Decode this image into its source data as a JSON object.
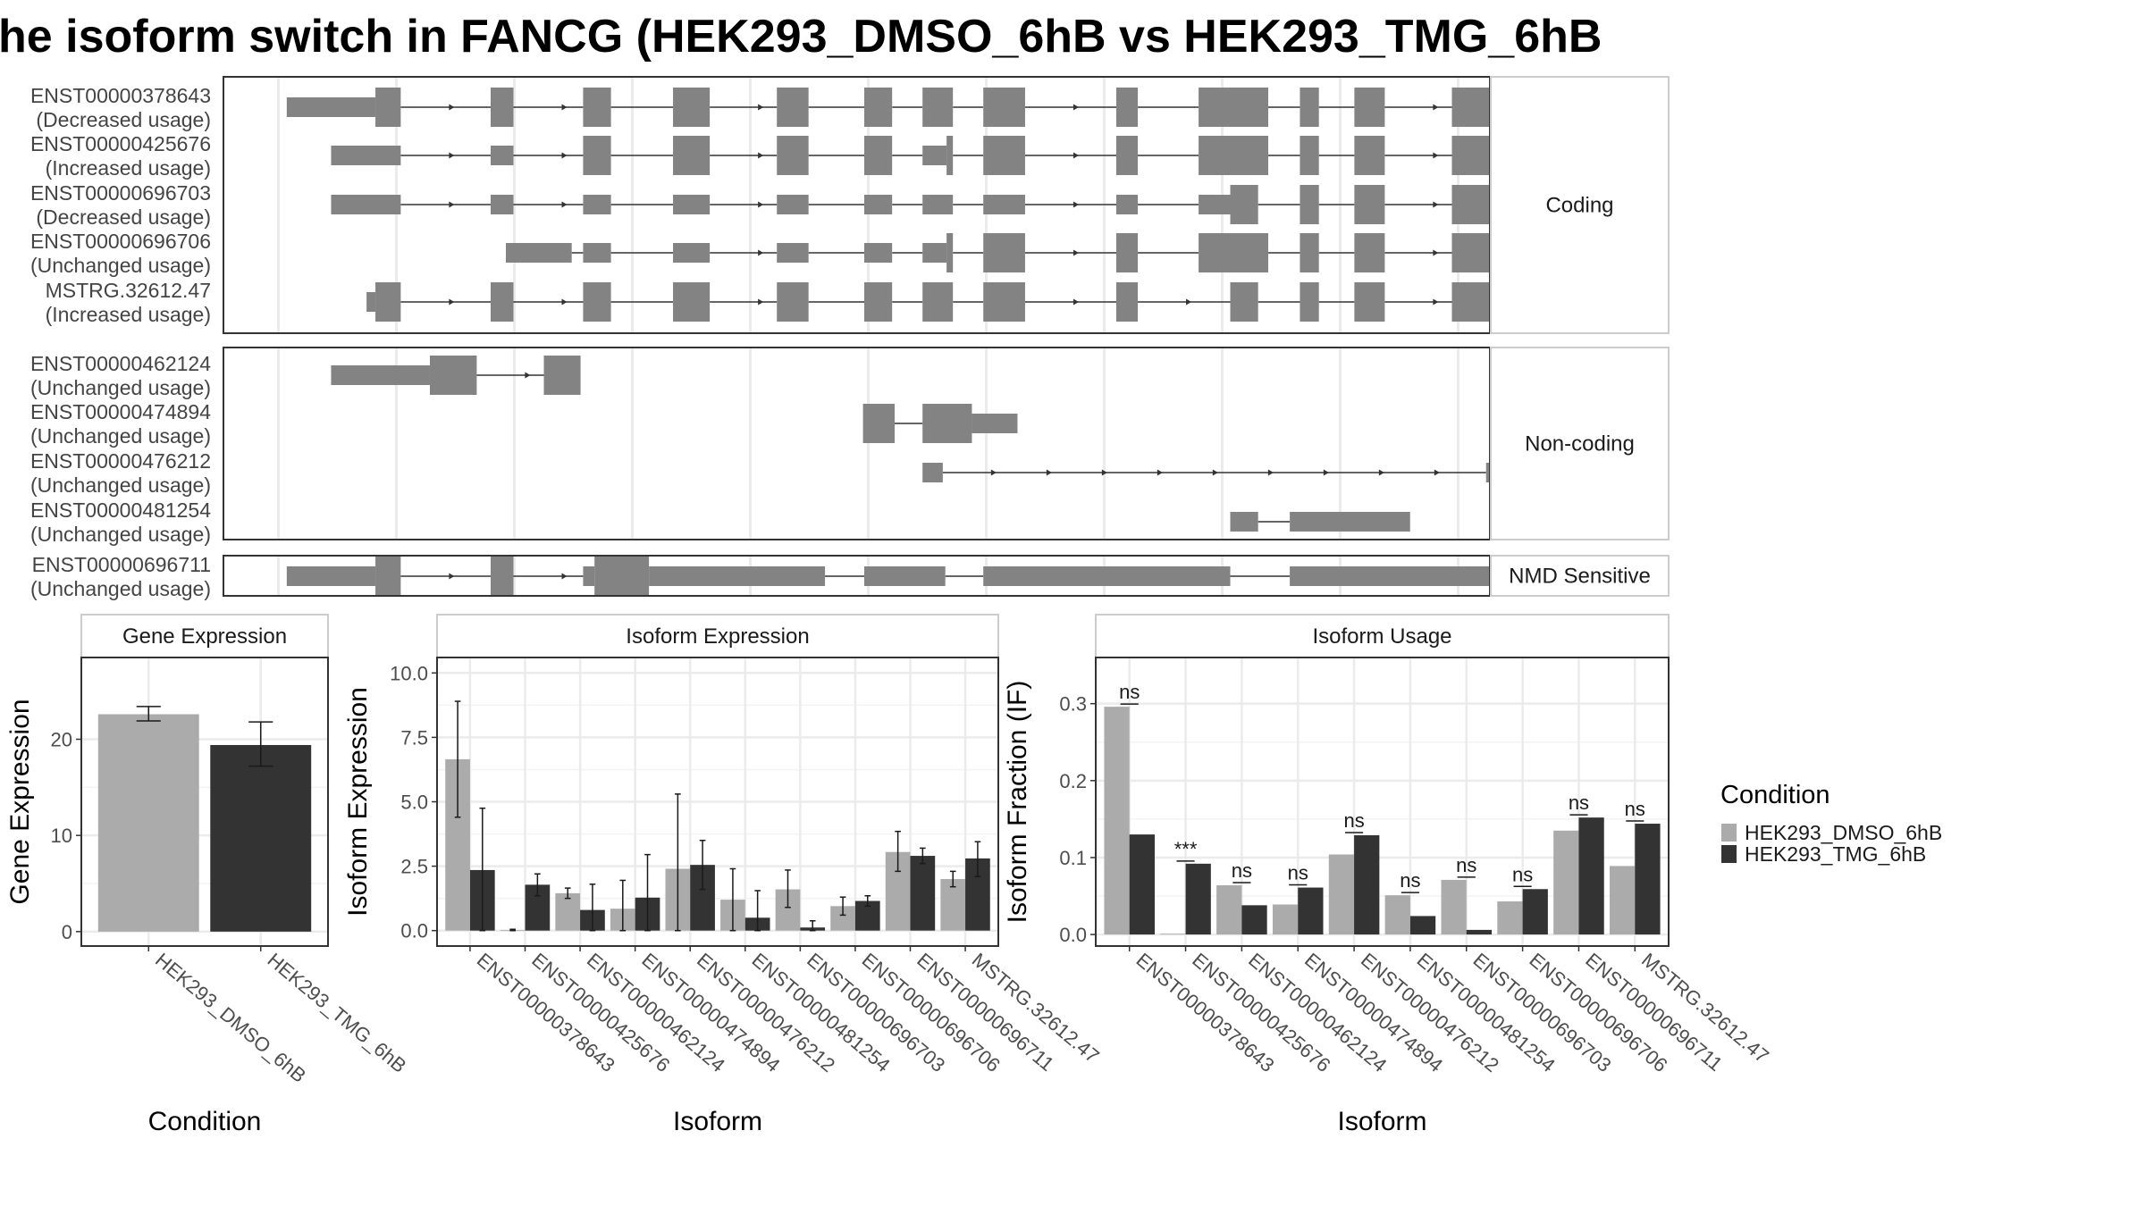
{
  "title": "he isoform switch in FANCG (HEK293_DMSO_6hB vs HEK293_TMG_6hB",
  "colors": {
    "dmso": "#ababab",
    "tmg": "#333333",
    "exon": "#838383",
    "grid": "#ebebeb",
    "panel_border": "#333333",
    "strip_border": "#cccccc"
  },
  "transcript_panel": {
    "sections": [
      {
        "label": "Coding",
        "transcripts": [
          {
            "id": "ENST00000378643",
            "usage": "(Decreased usage)",
            "strand": "+",
            "exons": [
              [
                0.05,
                0.12,
                "n"
              ],
              [
                0.12,
                0.14,
                "w"
              ],
              [
                0.211,
                0.229,
                "w"
              ],
              [
                0.284,
                0.306,
                "w"
              ],
              [
                0.355,
                0.384,
                "w"
              ],
              [
                0.437,
                0.462,
                "w"
              ],
              [
                0.506,
                0.528,
                "w"
              ],
              [
                0.552,
                0.576,
                "w"
              ],
              [
                0.6,
                0.633,
                "w"
              ],
              [
                0.705,
                0.722,
                "w"
              ],
              [
                0.77,
                0.825,
                "w"
              ],
              [
                0.85,
                0.865,
                "w"
              ],
              [
                0.893,
                0.917,
                "w"
              ],
              [
                0.97,
                1.003,
                "w"
              ],
              [
                1.035,
                1.055,
                "w"
              ],
              [
                1.055,
                1.11,
                "n"
              ]
            ]
          },
          {
            "id": "ENST00000425676",
            "usage": "(Increased usage)",
            "strand": "+",
            "exons": [
              [
                0.085,
                0.14,
                "n"
              ],
              [
                0.211,
                0.229,
                "n"
              ],
              [
                0.284,
                0.306,
                "w"
              ],
              [
                0.355,
                0.384,
                "w"
              ],
              [
                0.437,
                0.462,
                "w"
              ],
              [
                0.506,
                0.528,
                "w"
              ],
              [
                0.552,
                0.571,
                "n"
              ],
              [
                0.571,
                0.576,
                "w"
              ],
              [
                0.6,
                0.633,
                "w"
              ],
              [
                0.705,
                0.722,
                "w"
              ],
              [
                0.77,
                0.825,
                "w"
              ],
              [
                0.85,
                0.865,
                "w"
              ],
              [
                0.893,
                0.917,
                "w"
              ],
              [
                0.97,
                1.003,
                "w"
              ],
              [
                1.035,
                1.055,
                "w"
              ],
              [
                1.055,
                1.115,
                "n"
              ]
            ]
          },
          {
            "id": "ENST00000696703",
            "usage": "(Decreased usage)",
            "strand": "+",
            "exons": [
              [
                0.085,
                0.14,
                "n"
              ],
              [
                0.211,
                0.229,
                "n"
              ],
              [
                0.284,
                0.306,
                "n"
              ],
              [
                0.355,
                0.384,
                "n"
              ],
              [
                0.437,
                0.462,
                "n"
              ],
              [
                0.506,
                0.528,
                "n"
              ],
              [
                0.552,
                0.576,
                "n"
              ],
              [
                0.6,
                0.633,
                "n"
              ],
              [
                0.705,
                0.722,
                "n"
              ],
              [
                0.77,
                0.795,
                "n"
              ],
              [
                0.795,
                0.817,
                "w"
              ],
              [
                0.85,
                0.865,
                "w"
              ],
              [
                0.893,
                0.917,
                "w"
              ],
              [
                0.97,
                1.003,
                "w"
              ],
              [
                1.035,
                1.055,
                "w"
              ],
              [
                1.055,
                1.09,
                "n"
              ]
            ]
          },
          {
            "id": "ENST00000696706",
            "usage": "(Unchanged usage)",
            "strand": "+",
            "exons": [
              [
                0.223,
                0.275,
                "n"
              ],
              [
                0.284,
                0.306,
                "n"
              ],
              [
                0.355,
                0.384,
                "n"
              ],
              [
                0.437,
                0.462,
                "n"
              ],
              [
                0.506,
                0.528,
                "n"
              ],
              [
                0.552,
                0.571,
                "n"
              ],
              [
                0.571,
                0.576,
                "w"
              ],
              [
                0.6,
                0.633,
                "w"
              ],
              [
                0.705,
                0.722,
                "w"
              ],
              [
                0.77,
                0.825,
                "w"
              ],
              [
                0.85,
                0.865,
                "w"
              ],
              [
                0.893,
                0.917,
                "w"
              ],
              [
                0.97,
                1.003,
                "w"
              ],
              [
                1.035,
                1.055,
                "w"
              ],
              [
                1.055,
                1.1,
                "n"
              ]
            ]
          },
          {
            "id": "MSTRG.32612.47",
            "usage": "(Increased usage)",
            "strand": "+",
            "exons": [
              [
                0.113,
                0.12,
                "n"
              ],
              [
                0.12,
                0.14,
                "w"
              ],
              [
                0.211,
                0.229,
                "w"
              ],
              [
                0.284,
                0.306,
                "w"
              ],
              [
                0.355,
                0.384,
                "w"
              ],
              [
                0.437,
                0.462,
                "w"
              ],
              [
                0.506,
                0.528,
                "w"
              ],
              [
                0.552,
                0.576,
                "w"
              ],
              [
                0.6,
                0.633,
                "w"
              ],
              [
                0.705,
                0.722,
                "w"
              ],
              [
                0.795,
                0.817,
                "w"
              ],
              [
                0.85,
                0.865,
                "w"
              ],
              [
                0.893,
                0.917,
                "w"
              ],
              [
                0.97,
                1.003,
                "w"
              ],
              [
                1.035,
                1.055,
                "w"
              ],
              [
                1.055,
                1.135,
                "n"
              ]
            ]
          }
        ]
      },
      {
        "label": "Non-coding",
        "transcripts": [
          {
            "id": "ENST00000462124",
            "usage": "(Unchanged usage)",
            "strand": "+",
            "exons": [
              [
                0.085,
                0.163,
                "n"
              ],
              [
                0.163,
                0.2,
                "w"
              ],
              [
                0.253,
                0.282,
                "w"
              ]
            ]
          },
          {
            "id": "ENST00000474894",
            "usage": "(Unchanged usage)",
            "strand": "",
            "exons": [
              [
                0.505,
                0.53,
                "w"
              ],
              [
                0.552,
                0.591,
                "w"
              ],
              [
                0.591,
                0.627,
                "n"
              ]
            ]
          },
          {
            "id": "ENST00000476212",
            "usage": "(Unchanged usage)",
            "strand": "+",
            "exons": [
              [
                0.552,
                0.568,
                "n"
              ],
              [
                0.997,
                1.014,
                "n"
              ],
              [
                1.035,
                1.11,
                "n"
              ]
            ]
          },
          {
            "id": "ENST00000481254",
            "usage": "(Unchanged usage)",
            "strand": "",
            "exons": [
              [
                0.795,
                0.817,
                "n"
              ],
              [
                0.842,
                0.937,
                "n"
              ]
            ]
          }
        ]
      },
      {
        "label": "NMD Sensitive",
        "transcripts": [
          {
            "id": "ENST00000696711",
            "usage": "(Unchanged usage)",
            "strand": "+",
            "exons": [
              [
                0.05,
                0.12,
                "n"
              ],
              [
                0.12,
                0.14,
                "w"
              ],
              [
                0.211,
                0.229,
                "w"
              ],
              [
                0.284,
                0.293,
                "n"
              ],
              [
                0.293,
                0.336,
                "w"
              ],
              [
                0.336,
                0.475,
                "n"
              ],
              [
                0.506,
                0.57,
                "n"
              ],
              [
                0.6,
                0.795,
                "n"
              ],
              [
                0.842,
                1.08,
                "n"
              ]
            ]
          }
        ]
      }
    ]
  },
  "gene_expression": {
    "strip": "Gene Expression",
    "ylabel": "Gene Expression",
    "xlabel": "Condition",
    "yticks": [
      "0",
      "10",
      "20"
    ],
    "tick_values": [
      0,
      10,
      20
    ],
    "ylim": [
      -1.5,
      28.5
    ]
  },
  "isoform_expression": {
    "strip": "Isoform Expression",
    "ylabel": "Isoform Expression",
    "xlabel": "Isoform",
    "yticks": [
      "0.0",
      "2.5",
      "5.0",
      "7.5",
      "10.0"
    ],
    "tick_values": [
      0,
      2.5,
      5,
      7.5,
      10
    ],
    "ylim": [
      -0.6,
      10.6
    ]
  },
  "isoform_usage": {
    "strip": "Isoform Usage",
    "ylabel": "Isoform Fraction (IF)",
    "xlabel": "Isoform",
    "yticks": [
      "0.0",
      "0.1",
      "0.2",
      "0.3"
    ],
    "tick_values": [
      0,
      0.1,
      0.2,
      0.3
    ],
    "ylim": [
      -0.015,
      0.36
    ]
  },
  "legend": {
    "title": "Condition",
    "items": [
      "HEK293_DMSO_6hB",
      "HEK293_TMG_6hB"
    ]
  },
  "chart_data": [
    {
      "type": "bar",
      "title": "Gene Expression",
      "xlabel": "Condition",
      "ylabel": "Gene Expression",
      "categories": [
        "HEK293_DMSO_6hB",
        "HEK293_TMG_6hB"
      ],
      "values": [
        22.6,
        19.4
      ],
      "error_low": [
        21.9,
        17.2
      ],
      "error_high": [
        23.4,
        21.8
      ],
      "ylim": [
        -1.5,
        28.5
      ]
    },
    {
      "type": "bar",
      "title": "Isoform Expression",
      "xlabel": "Isoform",
      "ylabel": "Isoform Expression",
      "categories": [
        "ENST00000378643",
        "ENST00000425676",
        "ENST00000462124",
        "ENST00000474894",
        "ENST00000476212",
        "ENST00000481254",
        "ENST00000696703",
        "ENST00000696706",
        "ENST00000696711",
        "MSTRG.32612.47"
      ],
      "series": [
        {
          "name": "HEK293_DMSO_6hB",
          "values": [
            6.65,
            0.02,
            1.45,
            0.85,
            2.4,
            1.2,
            1.6,
            0.95,
            3.05,
            2.0
          ],
          "error_low": [
            4.4,
            0.0,
            1.25,
            0.0,
            0.0,
            0.0,
            0.9,
            0.6,
            2.3,
            1.7
          ],
          "error_high": [
            8.9,
            0.05,
            1.65,
            1.95,
            5.3,
            2.4,
            2.35,
            1.3,
            3.85,
            2.3
          ]
        },
        {
          "name": "HEK293_TMG_6hB",
          "values": [
            2.35,
            1.78,
            0.8,
            1.28,
            2.55,
            0.5,
            0.12,
            1.15,
            2.9,
            2.8
          ],
          "error_low": [
            0.0,
            1.35,
            0.0,
            0.0,
            1.6,
            0.0,
            0.0,
            0.95,
            2.6,
            2.1
          ],
          "error_high": [
            4.75,
            2.2,
            1.8,
            2.95,
            3.5,
            1.55,
            0.38,
            1.35,
            3.2,
            3.45
          ]
        }
      ],
      "ylim": [
        -0.6,
        10.6
      ]
    },
    {
      "type": "bar",
      "title": "Isoform Usage",
      "xlabel": "Isoform",
      "ylabel": "Isoform Fraction (IF)",
      "categories": [
        "ENST00000378643",
        "ENST00000425676",
        "ENST00000462124",
        "ENST00000474894",
        "ENST00000476212",
        "ENST00000481254",
        "ENST00000696703",
        "ENST00000696706",
        "ENST00000696711",
        "MSTRG.32612.47"
      ],
      "series": [
        {
          "name": "HEK293_DMSO_6hB",
          "values": [
            0.296,
            0.001,
            0.064,
            0.039,
            0.104,
            0.051,
            0.071,
            0.043,
            0.135,
            0.089
          ]
        },
        {
          "name": "HEK293_TMG_6hB",
          "values": [
            0.13,
            0.092,
            0.038,
            0.061,
            0.129,
            0.024,
            0.006,
            0.059,
            0.152,
            0.144
          ]
        }
      ],
      "significance": [
        "ns",
        "***",
        "ns",
        "ns",
        "ns",
        "ns",
        "ns",
        "ns",
        "ns",
        "ns"
      ],
      "ylim": [
        -0.015,
        0.36
      ]
    }
  ]
}
